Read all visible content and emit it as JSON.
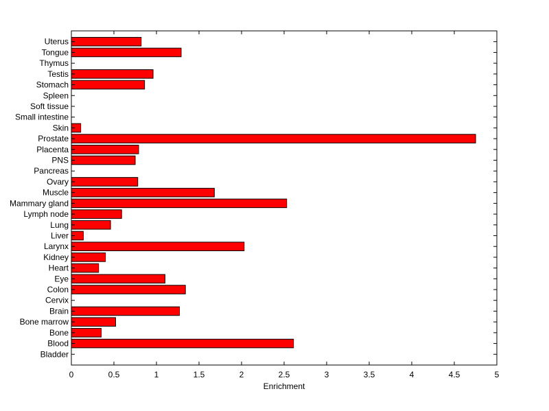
{
  "chart_data": {
    "type": "bar",
    "orientation": "horizontal",
    "categories": [
      "Uterus",
      "Tongue",
      "Thymus",
      "Testis",
      "Stomach",
      "Spleen",
      "Soft tissue",
      "Small intestine",
      "Skin",
      "Prostate",
      "Placenta",
      "PNS",
      "Pancreas",
      "Ovary",
      "Muscle",
      "Mammary gland",
      "Lymph node",
      "Lung",
      "Liver",
      "Larynx",
      "Kidney",
      "Heart",
      "Eye",
      "Colon",
      "Cervix",
      "Brain",
      "Bone marrow",
      "Bone",
      "Blood",
      "Bladder"
    ],
    "values": [
      0.82,
      1.29,
      0,
      0.96,
      0.86,
      0,
      0,
      0,
      0.11,
      4.75,
      0.79,
      0.75,
      0,
      0.78,
      1.68,
      2.53,
      0.59,
      0.46,
      0.14,
      2.03,
      0.4,
      0.32,
      1.1,
      1.34,
      0,
      1.27,
      0.52,
      0.35,
      2.61,
      0
    ],
    "xlabel": "Enrichment",
    "ylabel": "",
    "title": "",
    "xlim": [
      0,
      5
    ],
    "xticks": [
      "0",
      "0.5",
      "1",
      "1.5",
      "2",
      "2.5",
      "3",
      "3.5",
      "4",
      "4.5",
      "5"
    ],
    "grid": false,
    "bar_color": "#ff0000",
    "bar_edge_color": "#000000"
  }
}
